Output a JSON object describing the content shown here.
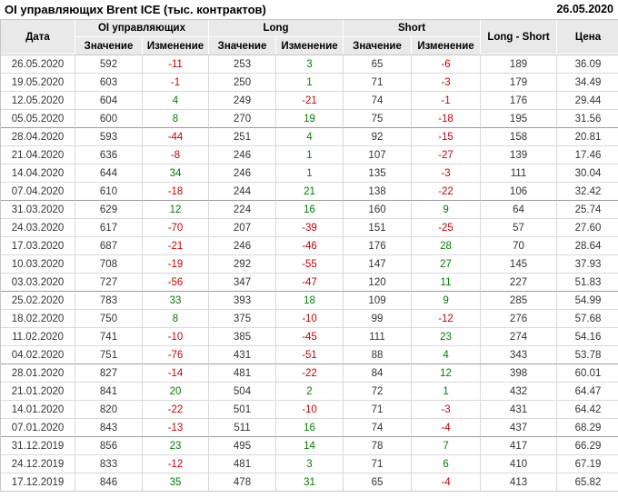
{
  "page": {
    "title": "OI управляющих Brent ICE (тыс. контрактов)",
    "report_date": "26.05.2020"
  },
  "colors": {
    "positive": "#008000",
    "negative": "#cc0000",
    "header_bg": "#e9e9e9"
  },
  "table": {
    "header": {
      "date": "Дата",
      "groups": [
        {
          "label": "OI управляющих"
        },
        {
          "label": "Long"
        },
        {
          "label": "Short"
        }
      ],
      "sub_value": "Значение",
      "sub_change": "Изменение",
      "long_short": "Long - Short",
      "price": "Цена"
    },
    "rows": [
      {
        "date": "26.05.2020",
        "oi": "592",
        "oi_chg": "-11",
        "long": "253",
        "long_chg": "3",
        "short": "65",
        "short_chg": "-6",
        "long_short": "189",
        "price": "36.09"
      },
      {
        "date": "19.05.2020",
        "oi": "603",
        "oi_chg": "-1",
        "long": "250",
        "long_chg": "1",
        "short": "71",
        "short_chg": "-3",
        "long_short": "179",
        "price": "34.49"
      },
      {
        "date": "12.05.2020",
        "oi": "604",
        "oi_chg": "4",
        "long": "249",
        "long_chg": "-21",
        "short": "74",
        "short_chg": "-1",
        "long_short": "176",
        "price": "29.44"
      },
      {
        "date": "05.05.2020",
        "oi": "600",
        "oi_chg": "8",
        "long": "270",
        "long_chg": "19",
        "short": "75",
        "short_chg": "-18",
        "long_short": "195",
        "price": "31.56"
      },
      {
        "date": "28.04.2020",
        "oi": "593",
        "oi_chg": "-44",
        "long": "251",
        "long_chg": "4",
        "short": "92",
        "short_chg": "-15",
        "long_short": "158",
        "price": "20.81"
      },
      {
        "date": "21.04.2020",
        "oi": "636",
        "oi_chg": "-8",
        "long": "246",
        "long_chg": "1",
        "short": "107",
        "short_chg": "-27",
        "long_short": "139",
        "price": "17.46"
      },
      {
        "date": "14.04.2020",
        "oi": "644",
        "oi_chg": "34",
        "long": "246",
        "long_chg": "1",
        "short": "135",
        "short_chg": "-3",
        "long_short": "111",
        "price": "30.04"
      },
      {
        "date": "07.04.2020",
        "oi": "610",
        "oi_chg": "-18",
        "long": "244",
        "long_chg": "21",
        "short": "138",
        "short_chg": "-22",
        "long_short": "106",
        "price": "32.42"
      },
      {
        "date": "31.03.2020",
        "oi": "629",
        "oi_chg": "12",
        "long": "224",
        "long_chg": "16",
        "short": "160",
        "short_chg": "9",
        "long_short": "64",
        "price": "25.74"
      },
      {
        "date": "24.03.2020",
        "oi": "617",
        "oi_chg": "-70",
        "long": "207",
        "long_chg": "-39",
        "short": "151",
        "short_chg": "-25",
        "long_short": "57",
        "price": "27.60"
      },
      {
        "date": "17.03.2020",
        "oi": "687",
        "oi_chg": "-21",
        "long": "246",
        "long_chg": "-46",
        "short": "176",
        "short_chg": "28",
        "long_short": "70",
        "price": "28.64"
      },
      {
        "date": "10.03.2020",
        "oi": "708",
        "oi_chg": "-19",
        "long": "292",
        "long_chg": "-55",
        "short": "147",
        "short_chg": "27",
        "long_short": "145",
        "price": "37.93"
      },
      {
        "date": "03.03.2020",
        "oi": "727",
        "oi_chg": "-56",
        "long": "347",
        "long_chg": "-47",
        "short": "120",
        "short_chg": "11",
        "long_short": "227",
        "price": "51.83"
      },
      {
        "date": "25.02.2020",
        "oi": "783",
        "oi_chg": "33",
        "long": "393",
        "long_chg": "18",
        "short": "109",
        "short_chg": "9",
        "long_short": "285",
        "price": "54.99"
      },
      {
        "date": "18.02.2020",
        "oi": "750",
        "oi_chg": "8",
        "long": "375",
        "long_chg": "-10",
        "short": "99",
        "short_chg": "-12",
        "long_short": "276",
        "price": "57.68"
      },
      {
        "date": "11.02.2020",
        "oi": "741",
        "oi_chg": "-10",
        "long": "385",
        "long_chg": "-45",
        "short": "111",
        "short_chg": "23",
        "long_short": "274",
        "price": "54.16"
      },
      {
        "date": "04.02.2020",
        "oi": "751",
        "oi_chg": "-76",
        "long": "431",
        "long_chg": "-51",
        "short": "88",
        "short_chg": "4",
        "long_short": "343",
        "price": "53.78"
      },
      {
        "date": "28.01.2020",
        "oi": "827",
        "oi_chg": "-14",
        "long": "481",
        "long_chg": "-22",
        "short": "84",
        "short_chg": "12",
        "long_short": "398",
        "price": "60.01"
      },
      {
        "date": "21.01.2020",
        "oi": "841",
        "oi_chg": "20",
        "long": "504",
        "long_chg": "2",
        "short": "72",
        "short_chg": "1",
        "long_short": "432",
        "price": "64.47"
      },
      {
        "date": "14.01.2020",
        "oi": "820",
        "oi_chg": "-22",
        "long": "501",
        "long_chg": "-10",
        "short": "71",
        "short_chg": "-3",
        "long_short": "431",
        "price": "64.42"
      },
      {
        "date": "07.01.2020",
        "oi": "843",
        "oi_chg": "-13",
        "long": "511",
        "long_chg": "16",
        "short": "74",
        "short_chg": "-4",
        "long_short": "437",
        "price": "68.29"
      },
      {
        "date": "31.12.2019",
        "oi": "856",
        "oi_chg": "23",
        "long": "495",
        "long_chg": "14",
        "short": "78",
        "short_chg": "7",
        "long_short": "417",
        "price": "66.29"
      },
      {
        "date": "24.12.2019",
        "oi": "833",
        "oi_chg": "-12",
        "long": "481",
        "long_chg": "3",
        "short": "71",
        "short_chg": "6",
        "long_short": "410",
        "price": "67.19"
      },
      {
        "date": "17.12.2019",
        "oi": "846",
        "oi_chg": "35",
        "long": "478",
        "long_chg": "31",
        "short": "65",
        "short_chg": "-4",
        "long_short": "413",
        "price": "65.82"
      }
    ]
  }
}
